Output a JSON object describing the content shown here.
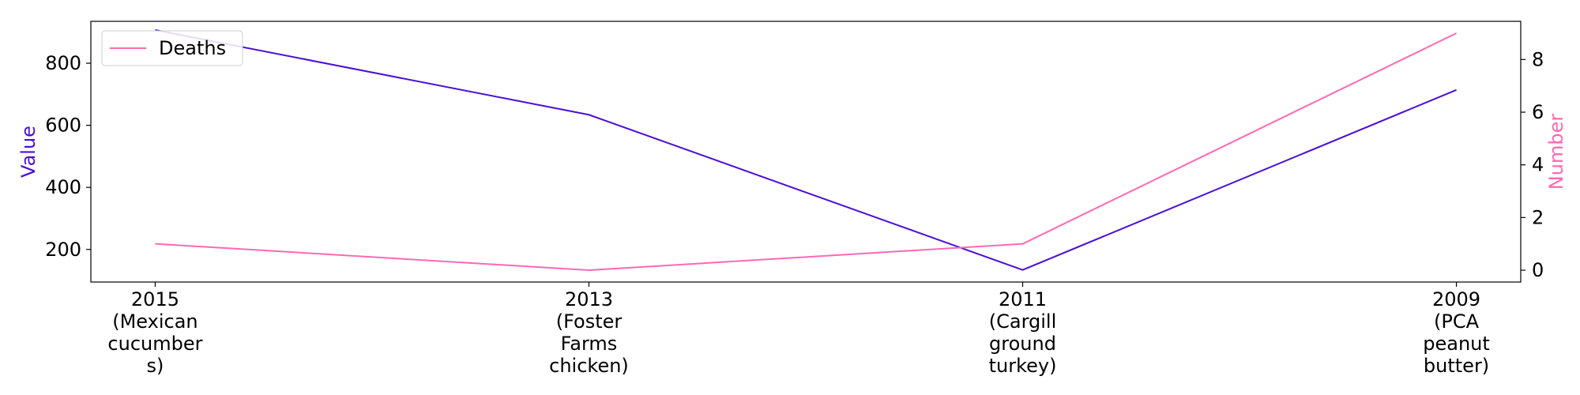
{
  "chart_data": {
    "type": "line",
    "categories": [
      [
        "2015",
        "(Mexican",
        "cucumber",
        "s)"
      ],
      [
        "2013",
        "(Foster",
        "Farms",
        "chicken)"
      ],
      [
        "2011",
        "(Cargill",
        "ground",
        "turkey)"
      ],
      [
        "2009",
        "(PCA",
        "peanut",
        "butter)"
      ]
    ],
    "series": [
      {
        "name": "",
        "axis": "left",
        "color": "#4B0FD6",
        "values": [
          907,
          634,
          134,
          714
        ]
      },
      {
        "name": "Deaths",
        "axis": "right",
        "color": "#FF69B4",
        "values": [
          1,
          0,
          1,
          9
        ]
      }
    ],
    "y_left": {
      "label": "Value",
      "label_color": "#4B0FD6",
      "ticks": [
        200,
        400,
        600,
        800
      ],
      "range": [
        95,
        935
      ]
    },
    "y_right": {
      "label": "Number",
      "label_color": "#FF69B4",
      "ticks": [
        0,
        2,
        4,
        6,
        8
      ],
      "range": [
        -0.45,
        9.45
      ]
    },
    "legend": {
      "position": "top-left",
      "entries": [
        "Deaths"
      ]
    },
    "grid": false
  }
}
